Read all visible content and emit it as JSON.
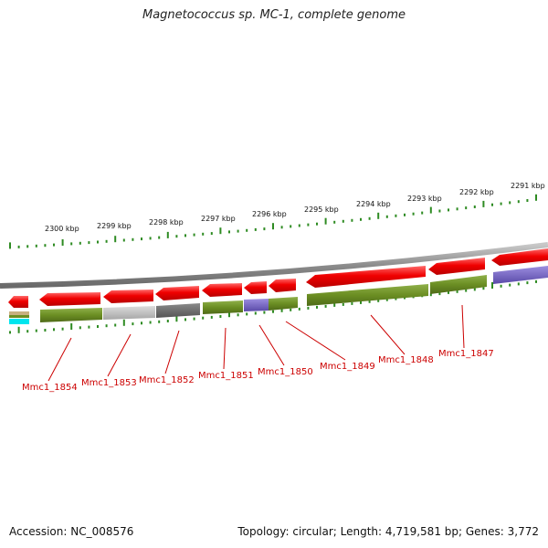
{
  "title": "Magnetococcus sp. MC-1, complete genome",
  "footer": {
    "accession": "Accession: NC_008576",
    "summary": "Topology: circular; Length: 4,719,581 bp; Genes: 3,772"
  },
  "colors": {
    "cds_red": "#e60000",
    "cog_green": "#6b8e23",
    "cog_grey_light": "#b8b8b8",
    "cog_grey_dark": "#6e6e6e",
    "cog_purple": "#7b68c8",
    "scale_green": "#2e8b22",
    "label_red": "#cc0000",
    "backbone": "#8c8c8c"
  },
  "scale": {
    "unit": "kbp",
    "labels": [
      "2300 kbp",
      "2299 kbp",
      "2298 kbp",
      "2297 kbp",
      "2296 kbp",
      "2295 kbp",
      "2294 kbp",
      "2293 kbp",
      "2292 kbp",
      "2291 kbp"
    ]
  },
  "genes": [
    {
      "label": "Mmc1_1854",
      "cog": "green"
    },
    {
      "label": "Mmc1_1853",
      "cog": "grey-light"
    },
    {
      "label": "Mmc1_1852",
      "cog": "grey-dark"
    },
    {
      "label": "Mmc1_1851",
      "cog": "green"
    },
    {
      "label": "Mmc1_1850",
      "cog": "purple"
    },
    {
      "label": "Mmc1_1849",
      "cog": "green"
    },
    {
      "label": "Mmc1_1848",
      "cog": "green"
    },
    {
      "label": "Mmc1_1847",
      "cog": "green"
    }
  ]
}
